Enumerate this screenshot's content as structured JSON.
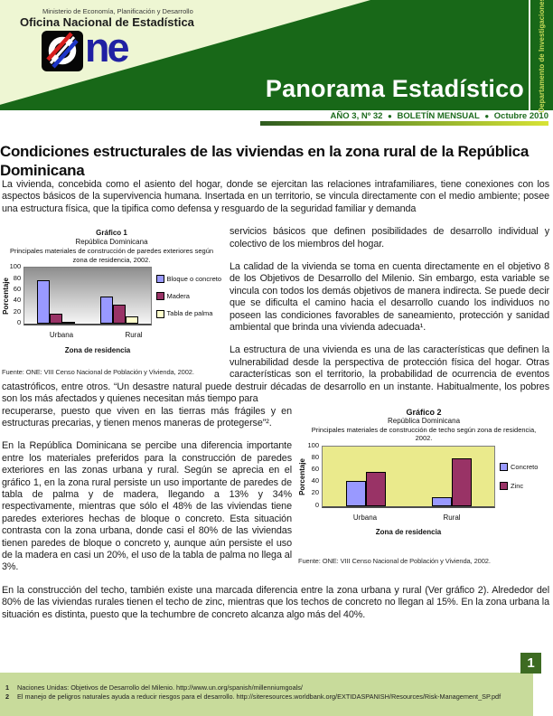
{
  "masthead": {
    "ministry": "Ministerio de Economía, Planificación y Desarrollo",
    "office": "Oficina Nacional de Estadística",
    "logo_text": "ne",
    "banner": "Panorama Estadístico",
    "vertical_strip": "Departamento de Investigaciones",
    "issue": {
      "num": "AÑO 3, Nº 32",
      "bullet": "●",
      "type": "BOLETÍN MENSUAL",
      "date": "Octubre 2010"
    }
  },
  "article": {
    "title": "Condiciones estructurales de las viviendas en la zona rural de la República Dominicana",
    "p1a": "La vivienda, concebida como el asiento del hogar, donde se ejercitan las relaciones intrafamiliares, tiene conexiones con los aspectos básicos de la supervivencia humana. Insertada en un territorio, se vincula directamente con el medio ambiente; posee una estructura física, que la tipifica como defensa y resguardo de la seguridad familiar y demanda",
    "p1b": "servicios básicos que definen posibilidades de desarrollo individual y colectivo de los miembros del hogar.",
    "p2": "La calidad de la vivienda se toma en cuenta directamente en el objetivo 8 de los Objetivos de Desarrollo del Milenio. Sin embargo, esta variable se vincula con todos los demás objetivos de manera indirecta. Se puede decir que se dificulta el camino hacia el desarrollo cuando los individuos no poseen las condiciones favorables de saneamiento, protección y sanidad ambiental que brinda una vivienda adecuada¹.",
    "p3a": "La estructura de una vivienda es una de las características que definen la vulnerabilidad desde la perspectiva de protección física del hogar. Otras características son el territorio, la probabilidad de ocurrencia de eventos catastróficos, entre otros. “Un desastre natural puede destruir décadas de desarrollo en un instante. Habitualmente, los pobres son los más afectados y quienes necesitan más tiempo para",
    "p3b": "recuperarse, puesto que viven en las tierras más frágiles y en estructuras precarias, y tienen menos maneras de protegerse”².",
    "p4": "En la República Dominicana se percibe una diferencia importante entre los materiales preferidos para la construcción de paredes exteriores en las zonas urbana y rural. Según se aprecia en el gráfico 1, en la zona rural persiste un uso importante de paredes de tabla de palma y de madera, llegando a 13% y 34% respectivamente, mientras que sólo el 48% de las viviendas tiene paredes exteriores hechas de bloque o concreto. Esta situación contrasta con la zona urbana, donde casi el 80% de las viviendas tienen paredes de bloque o concreto y, aunque aún persiste el uso de la madera en casi un 20%, el uso de la tabla de palma no llega al 3%.",
    "p5": "En la construcción del techo, también existe una marcada diferencia entre la zona urbana y rural (Ver gráfico 2). Alrededor del 80% de las viviendas rurales tienen el techo de zinc, mientras que los techos de concreto no llegan al 15%. En la zona urbana la situación es distinta, puesto que la techumbre de concreto alcanza algo más del 40%."
  },
  "chart_data": [
    {
      "type": "bar",
      "title": "Gráfico 1",
      "subtitle1": "República Dominicana",
      "subtitle2": "Principales materiales de construcción de paredes exteriores según zona de residencia, 2002.",
      "categories": [
        "Urbana",
        "Rural"
      ],
      "series": [
        {
          "name": "Bloque o concreto",
          "color": "#9999FF",
          "values": [
            78,
            48
          ]
        },
        {
          "name": "Madera",
          "color": "#993366",
          "values": [
            18,
            34
          ]
        },
        {
          "name": "Tabla de palma",
          "color": "#FFFFCC",
          "values": [
            2.5,
            13
          ]
        }
      ],
      "xlabel": "Zona de residencia",
      "ylabel": "Porcentaje",
      "ylim": [
        0,
        100
      ],
      "yticks": [
        0,
        20,
        40,
        60,
        80,
        100
      ],
      "grid": false,
      "legend_position": "right",
      "plot_bg": "gray-gradient",
      "source": "Fuente: ONE: VIII Censo Nacional de Población y Vivienda, 2002."
    },
    {
      "type": "bar",
      "title": "Gráfico 2",
      "subtitle1": "República Dominicana",
      "subtitle2": "Principales materiales de construcción de techo según zona de residencia, 2002.",
      "categories": [
        "Urbana",
        "Rural"
      ],
      "series": [
        {
          "name": "Concreto",
          "color": "#9999FF",
          "values": [
            41,
            15
          ]
        },
        {
          "name": "Zinc",
          "color": "#993366",
          "values": [
            57,
            80
          ]
        }
      ],
      "xlabel": "Zona de residencia",
      "ylabel": "Porcentaje",
      "ylim": [
        0,
        100
      ],
      "yticks": [
        0,
        20,
        40,
        60,
        80,
        100
      ],
      "grid": false,
      "legend_position": "right",
      "plot_bg": "#EAEA8C",
      "source": "Fuente: ONE: VIII Censo Nacional de Población y Vivienda, 2002."
    }
  ],
  "footer": {
    "page_number": "1",
    "footnotes": [
      {
        "num": "1",
        "text": "Naciones Unidas: Objetivos de Desarrollo del Milenio. http://www.un.org/spanish/millenniumgoals/"
      },
      {
        "num": "2",
        "text": "El manejo de peligros naturales ayuda a reducir riesgos para el desarrollo. http://siteresources.worldbank.org/EXTIDASPANISH/Resources/Risk-Management_SP.pdf"
      }
    ]
  },
  "colors": {
    "dark_green": "#186818",
    "pale_header": "#EEF6D3",
    "issue_green": "#1D6B1D",
    "strip_text": "#C6D95A",
    "footnote_band": "#C8DB9B",
    "badge_green": "#3D6B22",
    "bar_periwinkle": "#9999FF",
    "bar_maroon": "#993366",
    "bar_pale_yellow": "#FFFFCC",
    "chart2_plot_bg": "#EAEA8C"
  }
}
